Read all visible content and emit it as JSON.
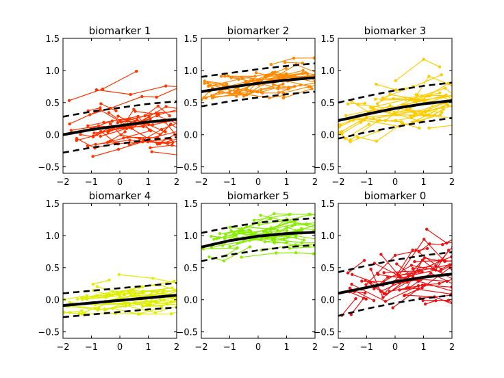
{
  "chart_data": [
    {
      "type": "line",
      "title": "biomarker 1",
      "color": "#ff3300",
      "xlim": [
        -2,
        2
      ],
      "ylim": [
        -0.6,
        1.5
      ],
      "xticks": [
        -2,
        -1,
        0,
        1,
        2
      ],
      "yticks": [
        -0.5,
        0.0,
        0.5,
        1.0,
        1.5
      ],
      "xtick_labels": [
        "−2",
        "−1",
        "0",
        "1",
        "2"
      ],
      "ytick_labels": [
        "−0.5",
        "0.0",
        "0.5",
        "1.0",
        "1.5"
      ],
      "mean": {
        "name": "",
        "x": [
          -2,
          -1,
          0,
          1,
          2
        ],
        "y": [
          0.0,
          0.08,
          0.14,
          0.2,
          0.24
        ]
      },
      "lower": {
        "name": "",
        "x": [
          -2,
          -1,
          0,
          1,
          2
        ],
        "y": [
          -0.28,
          -0.2,
          -0.14,
          -0.08,
          -0.04
        ]
      },
      "upper": {
        "name": "",
        "x": [
          -2,
          -1,
          0,
          1,
          2
        ],
        "y": [
          0.28,
          0.36,
          0.42,
          0.48,
          0.52
        ]
      },
      "subject_count": 40,
      "noise": 0.22,
      "seed": 11
    },
    {
      "type": "line",
      "title": "biomarker 2",
      "color": "#ff8800",
      "xlim": [
        -2,
        2
      ],
      "ylim": [
        -0.6,
        1.5
      ],
      "xticks": [
        -2,
        -1,
        0,
        1,
        2
      ],
      "yticks": [
        -0.5,
        0.0,
        0.5,
        1.0,
        1.5
      ],
      "xtick_labels": [
        "−2",
        "−1",
        "0",
        "1",
        "2"
      ],
      "ytick_labels": [
        "−0.5",
        "0.0",
        "0.5",
        "1.0",
        "1.5"
      ],
      "mean": {
        "name": "",
        "x": [
          -2,
          -1,
          0,
          1,
          2
        ],
        "y": [
          0.67,
          0.74,
          0.8,
          0.85,
          0.89
        ]
      },
      "lower": {
        "name": "",
        "x": [
          -2,
          -1,
          0,
          1,
          2
        ],
        "y": [
          0.44,
          0.52,
          0.58,
          0.63,
          0.67
        ]
      },
      "upper": {
        "name": "",
        "x": [
          -2,
          -1,
          0,
          1,
          2
        ],
        "y": [
          0.9,
          0.96,
          1.02,
          1.07,
          1.11
        ]
      },
      "subject_count": 40,
      "noise": 0.13,
      "seed": 23
    },
    {
      "type": "line",
      "title": "biomarker 3",
      "color": "#ffcc00",
      "xlim": [
        -2,
        2
      ],
      "ylim": [
        -0.6,
        1.5
      ],
      "xticks": [
        -2,
        -1,
        0,
        1,
        2
      ],
      "yticks": [
        -0.5,
        0.0,
        0.5,
        1.0,
        1.5
      ],
      "xtick_labels": [
        "−2",
        "−1",
        "0",
        "1",
        "2"
      ],
      "ytick_labels": [
        "−0.5",
        "0.0",
        "0.5",
        "1.0",
        "1.5"
      ],
      "mean": {
        "name": "",
        "x": [
          -2,
          -1,
          0,
          1,
          2
        ],
        "y": [
          0.22,
          0.32,
          0.41,
          0.48,
          0.53
        ]
      },
      "lower": {
        "name": "",
        "x": [
          -2,
          -1,
          0,
          1,
          2
        ],
        "y": [
          -0.06,
          0.04,
          0.12,
          0.2,
          0.26
        ]
      },
      "upper": {
        "name": "",
        "x": [
          -2,
          -1,
          0,
          1,
          2
        ],
        "y": [
          0.5,
          0.6,
          0.69,
          0.76,
          0.81
        ]
      },
      "subject_count": 40,
      "noise": 0.2,
      "seed": 37
    },
    {
      "type": "line",
      "title": "biomarker 4",
      "color": "#ddee00",
      "xlim": [
        -2,
        2
      ],
      "ylim": [
        -0.6,
        1.5
      ],
      "xticks": [
        -2,
        -1,
        0,
        1,
        2
      ],
      "yticks": [
        -0.5,
        0.0,
        0.5,
        1.0,
        1.5
      ],
      "xtick_labels": [
        "−2",
        "−1",
        "0",
        "1",
        "2"
      ],
      "ytick_labels": [
        "−0.5",
        "0.0",
        "0.5",
        "1.0",
        "1.5"
      ],
      "mean": {
        "name": "",
        "x": [
          -2,
          -1,
          0,
          1,
          2
        ],
        "y": [
          -0.09,
          -0.05,
          -0.01,
          0.03,
          0.07
        ]
      },
      "lower": {
        "name": "",
        "x": [
          -2,
          -1,
          0,
          1,
          2
        ],
        "y": [
          -0.27,
          -0.23,
          -0.19,
          -0.15,
          -0.12
        ]
      },
      "upper": {
        "name": "",
        "x": [
          -2,
          -1,
          0,
          1,
          2
        ],
        "y": [
          0.1,
          0.14,
          0.18,
          0.22,
          0.26
        ]
      },
      "subject_count": 40,
      "noise": 0.14,
      "seed": 41
    },
    {
      "type": "line",
      "title": "biomarker 5",
      "color": "#88ee00",
      "xlim": [
        -2,
        2
      ],
      "ylim": [
        -0.6,
        1.5
      ],
      "xticks": [
        -2,
        -1,
        0,
        1,
        2
      ],
      "yticks": [
        -0.5,
        0.0,
        0.5,
        1.0,
        1.5
      ],
      "xtick_labels": [
        "−2",
        "−1",
        "0",
        "1",
        "2"
      ],
      "ytick_labels": [
        "−0.5",
        "0.0",
        "0.5",
        "1.0",
        "1.5"
      ],
      "mean": {
        "name": "",
        "x": [
          -2,
          -1,
          0,
          1,
          2
        ],
        "y": [
          0.82,
          0.92,
          0.99,
          1.03,
          1.05
        ]
      },
      "lower": {
        "name": "",
        "x": [
          -2,
          -1,
          0,
          1,
          2
        ],
        "y": [
          0.6,
          0.7,
          0.77,
          0.82,
          0.85
        ]
      },
      "upper": {
        "name": "",
        "x": [
          -2,
          -1,
          0,
          1,
          2
        ],
        "y": [
          1.04,
          1.13,
          1.2,
          1.24,
          1.27
        ]
      },
      "subject_count": 40,
      "noise": 0.14,
      "seed": 53
    },
    {
      "type": "line",
      "title": "biomarker 0",
      "color": "#ee1111",
      "xlim": [
        -2,
        2
      ],
      "ylim": [
        -0.6,
        1.5
      ],
      "xticks": [
        -2,
        -1,
        0,
        1,
        2
      ],
      "yticks": [
        -0.5,
        0.0,
        0.5,
        1.0,
        1.5
      ],
      "xtick_labels": [
        "−2",
        "−1",
        "0",
        "1",
        "2"
      ],
      "ytick_labels": [
        "−0.5",
        "0.0",
        "0.5",
        "1.0",
        "1.5"
      ],
      "mean": {
        "name": "",
        "x": [
          -2,
          -1,
          0,
          1,
          2
        ],
        "y": [
          0.1,
          0.19,
          0.28,
          0.35,
          0.4
        ]
      },
      "lower": {
        "name": "",
        "x": [
          -2,
          -1,
          0,
          1,
          2
        ],
        "y": [
          -0.25,
          -0.14,
          -0.05,
          0.02,
          0.07
        ]
      },
      "upper": {
        "name": "",
        "x": [
          -2,
          -1,
          0,
          1,
          2
        ],
        "y": [
          0.43,
          0.53,
          0.62,
          0.69,
          0.74
        ]
      },
      "subject_count": 40,
      "noise": 0.28,
      "seed": 67
    }
  ]
}
